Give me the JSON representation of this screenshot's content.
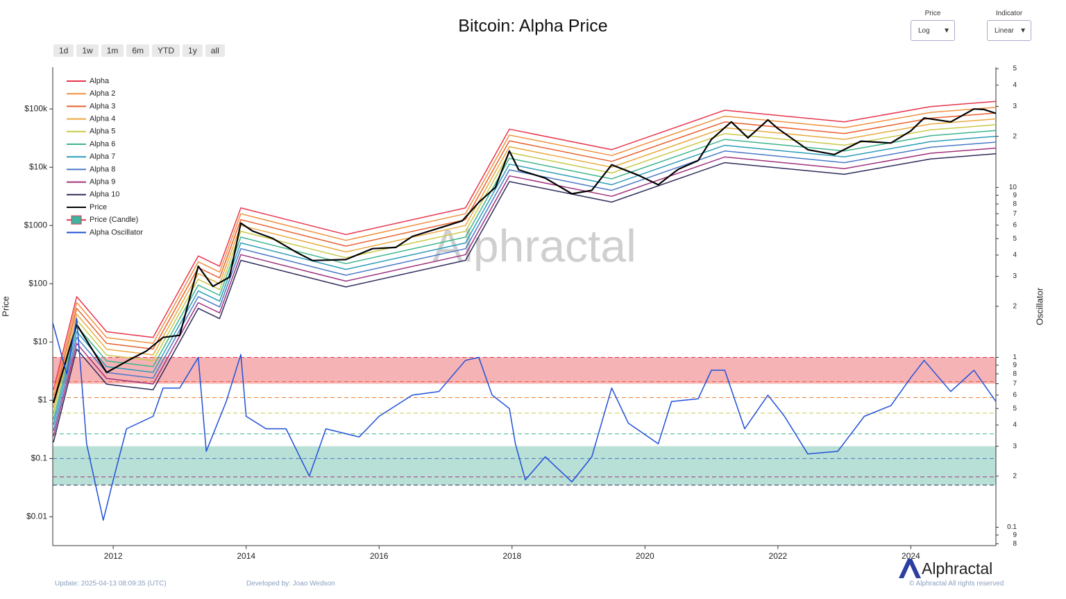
{
  "range_buttons": [
    "1d",
    "1w",
    "1m",
    "6m",
    "YTD",
    "1y",
    "all"
  ],
  "controls": [
    {
      "label": "Price",
      "value": "Log"
    },
    {
      "label": "Indicator",
      "value": "Linear"
    }
  ],
  "footer": {
    "update": "Update: 2025-04-13 08:09:35 (UTC)",
    "developer": "Developed by: Joao Wedson",
    "brand": "Alphractal",
    "rights": "© Alphractal All rights reserved"
  },
  "chart_data": {
    "type": "line",
    "title": "Bitcoin: Alpha Price",
    "watermark": "Alphractal",
    "y_label": "Price",
    "y2_label": "Oscillator",
    "log_y": true,
    "log_y2": true,
    "xlim": [
      2011.09,
      2025.28
    ],
    "xticks": [
      2012,
      2014,
      2016,
      2018,
      2020,
      2022,
      2024
    ],
    "ylim": [
      0.0032,
      520000
    ],
    "yticks": [
      {
        "value": 0.01,
        "label": "$0.01"
      },
      {
        "value": 0.1,
        "label": "$0.1"
      },
      {
        "value": 1,
        "label": "$1"
      },
      {
        "value": 10,
        "label": "$10"
      },
      {
        "value": 100,
        "label": "$100"
      },
      {
        "value": 1000,
        "label": "$1000"
      },
      {
        "value": 10000,
        "label": "$10k"
      },
      {
        "value": 100000,
        "label": "$100k"
      }
    ],
    "y2lim": [
      0.078,
      51
    ],
    "y2ticks": [
      {
        "value": 50,
        "label": "5"
      },
      {
        "value": 40,
        "label": "4"
      },
      {
        "value": 30,
        "label": "3"
      },
      {
        "value": 20,
        "label": "2"
      },
      10,
      9,
      8,
      7,
      6,
      5,
      4,
      3,
      2,
      1,
      {
        "value": 0.9,
        "label": "9"
      },
      {
        "value": 0.8,
        "label": "8"
      },
      {
        "value": 0.7,
        "label": "7"
      },
      {
        "value": 0.6,
        "label": "6"
      },
      {
        "value": 0.5,
        "label": "5"
      },
      {
        "value": 0.4,
        "label": "4"
      },
      {
        "value": 0.3,
        "label": "3"
      },
      {
        "value": 0.2,
        "label": "2"
      },
      0.1,
      {
        "value": 0.09,
        "label": "9"
      },
      {
        "value": 0.08,
        "label": "8"
      }
    ],
    "legend_position": "upper left",
    "candle_legend": {
      "name": "Price (Candle)",
      "up_color": "#3cb4a0",
      "down_color": "#e8334a"
    },
    "zones": [
      {
        "range": [
          0.7,
          1.0
        ],
        "color": "#f4a0a4"
      },
      {
        "range": [
          0.177,
          0.3
        ],
        "color": "#a8d8cc"
      }
    ],
    "levels": [
      {
        "value": 1.0,
        "color": "#e8334a"
      },
      {
        "value": 0.72,
        "color": "#e8602e"
      },
      {
        "value": 0.58,
        "color": "#f07f2e"
      },
      {
        "value": 0.47,
        "color": "#c8c84a"
      },
      {
        "value": 0.355,
        "color": "#3cb48c"
      },
      {
        "value": 0.254,
        "color": "#4a78c8"
      },
      {
        "value": 0.198,
        "color": "#a0307a"
      },
      {
        "value": 0.177,
        "color": "#2c2a5a"
      }
    ],
    "series": [
      {
        "name": "Alpha",
        "color": "#e8334a",
        "x": [
          2011.1,
          2011.45,
          2011.9,
          2012.6,
          2013.28,
          2013.6,
          2013.92,
          2015.5,
          2017.3,
          2017.96,
          2019.5,
          2021.2,
          2023.0,
          2024.3,
          2025.28
        ],
        "values": [
          1.5,
          60,
          15,
          12,
          300,
          200,
          2000,
          700,
          2000,
          45000,
          20000,
          95000,
          60000,
          110000,
          135000
        ]
      },
      {
        "name": "Alpha 2",
        "color": "#f0903c",
        "x": [
          2011.1,
          2011.45,
          2011.9,
          2012.6,
          2013.28,
          2013.6,
          2013.92,
          2015.5,
          2017.3,
          2017.96,
          2019.5,
          2021.2,
          2023.0,
          2024.3,
          2025.28
        ],
        "values": [
          1.19,
          47.6,
          11.9,
          9.53,
          238,
          159,
          1590,
          556,
          1590,
          35700,
          15900,
          75400,
          47600,
          87300,
          107000
        ]
      },
      {
        "name": "Alpha 3",
        "color": "#e8602e",
        "x": [
          2011.1,
          2011.45,
          2011.9,
          2012.6,
          2013.28,
          2013.6,
          2013.92,
          2015.5,
          2017.3,
          2017.96,
          2019.5,
          2021.2,
          2023.0,
          2024.3,
          2025.28
        ],
        "values": [
          0.95,
          37.9,
          9.47,
          7.57,
          189,
          126,
          1260,
          442,
          1260,
          28400,
          12600,
          59900,
          37900,
          69400,
          85200
        ]
      },
      {
        "name": "Alpha 4",
        "color": "#e9a83c",
        "x": [
          2011.1,
          2011.45,
          2011.9,
          2012.6,
          2013.28,
          2013.6,
          2013.92,
          2015.5,
          2017.3,
          2017.96,
          2019.5,
          2021.2,
          2023.0,
          2024.3,
          2025.28
        ],
        "values": [
          0.75,
          30.1,
          7.52,
          6.01,
          150,
          100,
          1000,
          351,
          1000,
          22500,
          10000,
          47600,
          30100,
          55100,
          67600
        ]
      },
      {
        "name": "Alpha 5",
        "color": "#c8c84a",
        "x": [
          2011.1,
          2011.45,
          2011.9,
          2012.6,
          2013.28,
          2013.6,
          2013.92,
          2015.5,
          2017.3,
          2017.96,
          2019.5,
          2021.2,
          2023.0,
          2024.3,
          2025.28
        ],
        "values": [
          0.6,
          23.9,
          5.97,
          4.78,
          119,
          79.6,
          796,
          279,
          796,
          17900,
          7960,
          37800,
          23900,
          43800,
          53700
        ]
      },
      {
        "name": "Alpha 6",
        "color": "#3cb48c",
        "x": [
          2011.1,
          2011.45,
          2011.9,
          2012.6,
          2013.28,
          2013.6,
          2013.92,
          2015.5,
          2017.3,
          2017.96,
          2019.5,
          2021.2,
          2023.0,
          2024.3,
          2025.28
        ],
        "values": [
          0.47,
          19.0,
          4.74,
          3.79,
          94.8,
          63.2,
          632,
          221,
          632,
          14200,
          6320,
          30000,
          19000,
          34800,
          42700
        ]
      },
      {
        "name": "Alpha 7",
        "color": "#2a9bb8",
        "x": [
          2011.1,
          2011.45,
          2011.9,
          2012.6,
          2013.28,
          2013.6,
          2013.92,
          2015.5,
          2017.3,
          2017.96,
          2019.5,
          2021.2,
          2023.0,
          2024.3,
          2025.28
        ],
        "values": [
          0.38,
          15.1,
          3.77,
          3.01,
          75.4,
          50.2,
          502,
          176,
          502,
          11300,
          5020,
          23800,
          15100,
          27600,
          33900
        ]
      },
      {
        "name": "Alpha 8",
        "color": "#4a78c8",
        "x": [
          2011.1,
          2011.45,
          2011.9,
          2012.6,
          2013.28,
          2013.6,
          2013.92,
          2015.5,
          2017.3,
          2017.96,
          2019.5,
          2021.2,
          2023.0,
          2024.3,
          2025.28
        ],
        "values": [
          0.3,
          12.0,
          3.0,
          2.4,
          60,
          40,
          400,
          140,
          400,
          9000,
          4000,
          19000,
          12000,
          22000,
          27000
        ]
      },
      {
        "name": "Alpha 9",
        "color": "#a0307a",
        "x": [
          2011.1,
          2011.45,
          2011.9,
          2012.6,
          2013.28,
          2013.6,
          2013.92,
          2015.5,
          2017.3,
          2017.96,
          2019.5,
          2021.2,
          2023.0,
          2024.3,
          2025.28
        ],
        "values": [
          0.24,
          9.48,
          2.37,
          1.9,
          47.4,
          31.6,
          316,
          111,
          316,
          7110,
          3160,
          15000,
          9480,
          17400,
          21300
        ]
      },
      {
        "name": "Alpha 10",
        "color": "#2c2a5a",
        "x": [
          2011.1,
          2011.45,
          2011.9,
          2012.6,
          2013.28,
          2013.6,
          2013.92,
          2015.5,
          2017.3,
          2017.96,
          2019.5,
          2021.2,
          2023.0,
          2024.3,
          2025.28
        ],
        "values": [
          0.19,
          7.56,
          1.89,
          1.51,
          37.8,
          25.2,
          252,
          88.2,
          252,
          5670,
          2520,
          12000,
          7560,
          13900,
          17000
        ]
      },
      {
        "name": "Price",
        "color": "#000000",
        "x": [
          2011.1,
          2011.45,
          2011.9,
          2012.25,
          2012.5,
          2012.75,
          2013.0,
          2013.28,
          2013.5,
          2013.75,
          2013.92,
          2014.1,
          2014.4,
          2014.75,
          2015.0,
          2015.5,
          2015.9,
          2016.25,
          2016.5,
          2016.9,
          2017.25,
          2017.5,
          2017.75,
          2017.96,
          2018.1,
          2018.5,
          2018.9,
          2019.2,
          2019.5,
          2019.9,
          2020.2,
          2020.5,
          2020.8,
          2021.0,
          2021.3,
          2021.55,
          2021.85,
          2022.0,
          2022.45,
          2022.85,
          2023.25,
          2023.7,
          2024.0,
          2024.2,
          2024.6,
          2024.95,
          2025.1,
          2025.28
        ],
        "values": [
          0.9,
          20,
          3,
          5,
          7,
          12,
          13,
          200,
          90,
          130,
          1100,
          800,
          600,
          350,
          250,
          260,
          400,
          420,
          650,
          900,
          1200,
          2500,
          4500,
          19000,
          9000,
          6500,
          3500,
          4000,
          11000,
          7300,
          5000,
          9200,
          13000,
          30000,
          60000,
          32000,
          65000,
          46000,
          20000,
          16500,
          28000,
          26000,
          42000,
          70000,
          60000,
          100000,
          98000,
          84000
        ]
      },
      {
        "name": "Alpha Oscillator",
        "color": "#1f4fd8",
        "axis": "y2",
        "x": [
          2011.09,
          2011.3,
          2011.45,
          2011.6,
          2011.85,
          2012.0,
          2012.2,
          2012.6,
          2012.75,
          2013.0,
          2013.28,
          2013.4,
          2013.7,
          2013.92,
          2014.0,
          2014.3,
          2014.6,
          2014.95,
          2015.2,
          2015.7,
          2016.0,
          2016.5,
          2016.9,
          2017.3,
          2017.5,
          2017.7,
          2017.96,
          2018.05,
          2018.2,
          2018.5,
          2018.9,
          2019.2,
          2019.5,
          2019.75,
          2020.2,
          2020.4,
          2020.8,
          2021.0,
          2021.2,
          2021.5,
          2021.85,
          2022.1,
          2022.45,
          2022.9,
          2023.3,
          2023.7,
          2024.0,
          2024.2,
          2024.6,
          2024.95,
          2025.28
        ],
        "values": [
          1.6,
          0.8,
          1.7,
          0.31,
          0.11,
          0.19,
          0.38,
          0.45,
          0.66,
          0.66,
          1.0,
          0.28,
          0.55,
          1.04,
          0.45,
          0.38,
          0.38,
          0.2,
          0.38,
          0.34,
          0.45,
          0.6,
          0.63,
          0.96,
          1.0,
          0.6,
          0.5,
          0.31,
          0.19,
          0.26,
          0.185,
          0.26,
          0.66,
          0.41,
          0.31,
          0.55,
          0.57,
          0.84,
          0.84,
          0.38,
          0.6,
          0.45,
          0.27,
          0.28,
          0.45,
          0.52,
          0.76,
          0.96,
          0.63,
          0.84,
          0.55
        ]
      }
    ]
  }
}
